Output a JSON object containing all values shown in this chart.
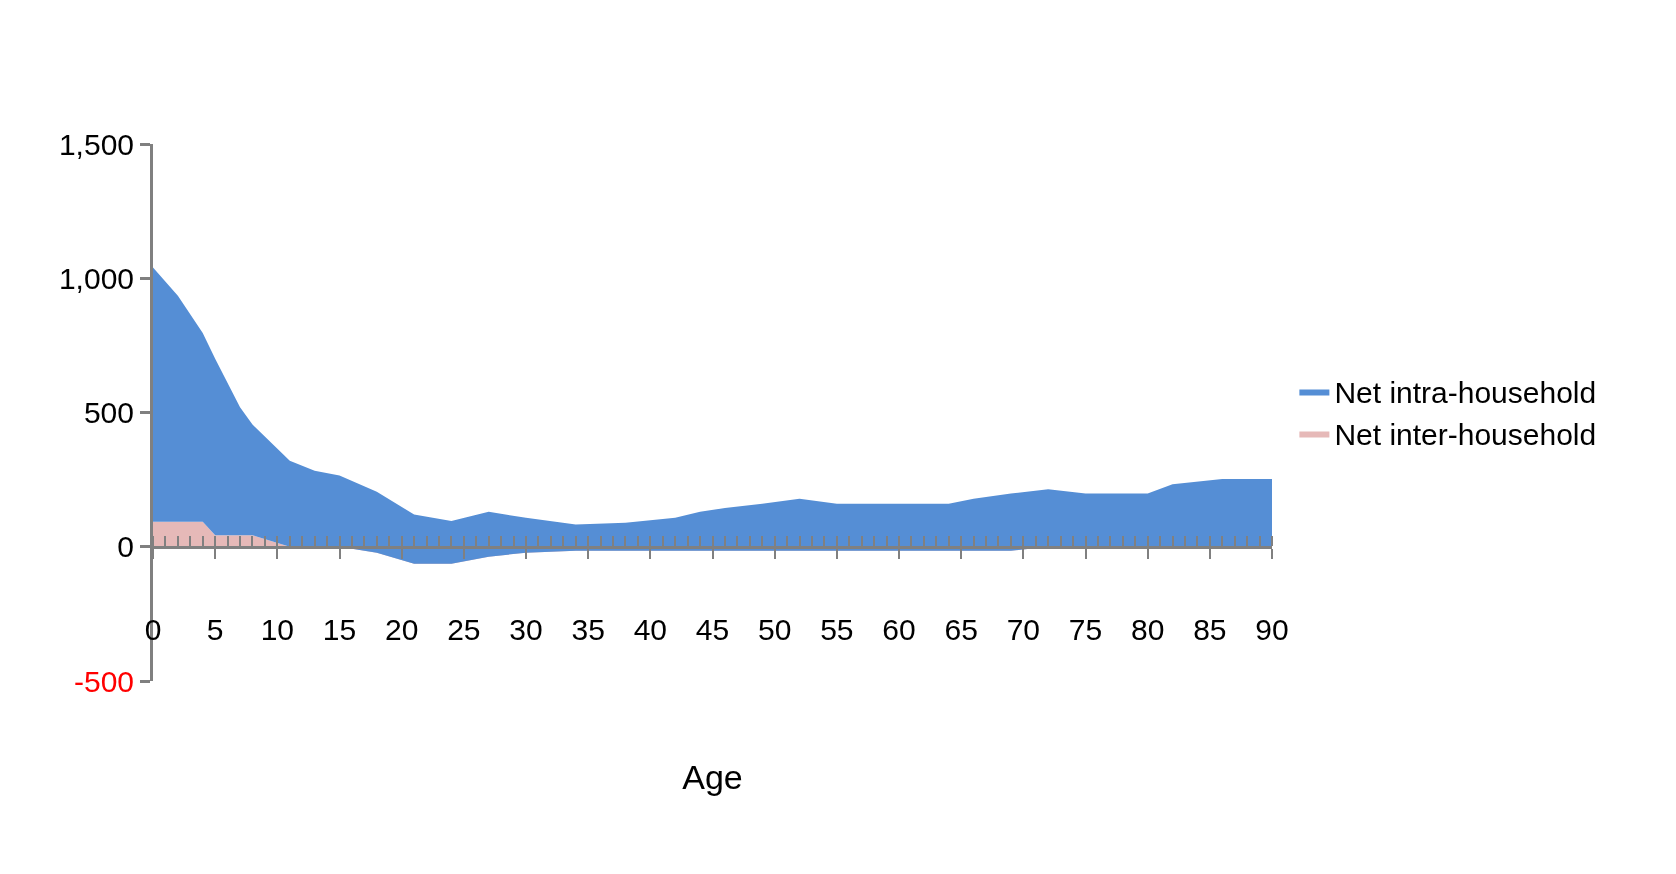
{
  "chart_data": {
    "type": "area",
    "xlabel": "Age",
    "stacked": true,
    "legend": "right",
    "marker": "none",
    "x": [
      0,
      2,
      4,
      5,
      7,
      8,
      11,
      13,
      15,
      18,
      21,
      24,
      27,
      30,
      34,
      38,
      42,
      44,
      46,
      49,
      52,
      55,
      64,
      66,
      69,
      72,
      75,
      80,
      82,
      86,
      90
    ],
    "series": [
      {
        "name": "Net inter-household",
        "color": "#e6b9b8",
        "values": [
          93,
          93,
          93,
          43,
          43,
          43,
          0,
          0,
          0,
          -22,
          -63,
          -63,
          -37,
          -22,
          -15,
          -15,
          -15,
          -15,
          -15,
          -15,
          -15,
          -15,
          -15,
          -15,
          -15,
          0,
          0,
          0,
          0,
          0,
          0
        ]
      },
      {
        "name": "Net intra-household",
        "color": "#558ed5",
        "values": [
          947,
          842,
          703,
          657,
          477,
          412,
          320,
          283,
          265,
          227,
          183,
          159,
          167,
          130,
          98,
          104,
          123,
          145,
          159,
          175,
          194,
          175,
          175,
          194,
          213,
          214,
          198,
          198,
          233,
          252,
          252
        ]
      }
    ],
    "xlim": [
      0,
      90
    ],
    "xticks": [
      0,
      5,
      10,
      15,
      20,
      25,
      30,
      35,
      40,
      45,
      50,
      55,
      60,
      65,
      70,
      75,
      80,
      85,
      90
    ],
    "ylim": [
      -500,
      1500
    ],
    "yticks": [
      {
        "value": -500,
        "label": "-500"
      },
      {
        "value": 0,
        "label": "0"
      },
      {
        "value": 500,
        "label": "500"
      },
      {
        "value": 1000,
        "label": "1,000"
      },
      {
        "value": 1500,
        "label": "1,500"
      }
    ]
  }
}
